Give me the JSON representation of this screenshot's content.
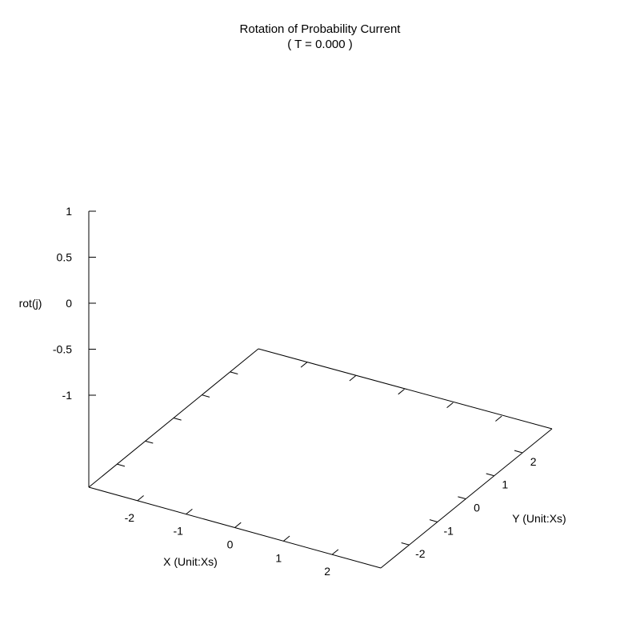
{
  "chart_data": {
    "type": "surface3d",
    "title": "Rotation of Probability Current",
    "subtitle": "( T = 0.000 )",
    "xlabel": "X (Unit:Xs)",
    "ylabel": "Y (Unit:Xs)",
    "zlabel": "rot(j)",
    "x_ticks": [
      "-2",
      "-1",
      "0",
      "1",
      "2"
    ],
    "y_ticks": [
      "-2",
      "-1",
      "0",
      "1",
      "2"
    ],
    "z_ticks": [
      "1",
      "0.5",
      "0",
      "-0.5",
      "-1"
    ],
    "xlim": [
      -3,
      3
    ],
    "ylim": [
      -3,
      3
    ],
    "zlim": [
      -1,
      1
    ],
    "grid": false,
    "legend": "none",
    "line_color": "#000000"
  }
}
